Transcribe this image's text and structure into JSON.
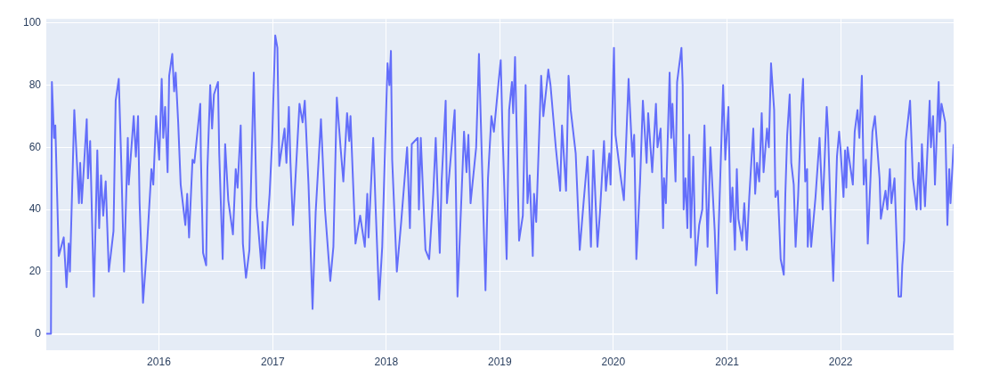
{
  "chart_data": {
    "type": "line",
    "xlim": [
      "2015-01-04",
      "2022-12-30"
    ],
    "ylim": [
      -5.3,
      101.3
    ],
    "xticks": [
      "2016",
      "2017",
      "2018",
      "2019",
      "2020",
      "2021",
      "2022"
    ],
    "yticks": [
      0,
      20,
      40,
      60,
      80,
      100
    ],
    "grid": true,
    "x": [
      "2015-01-04",
      "2015-01-19",
      "2015-01-22",
      "2015-01-29",
      "2015-02-02",
      "2015-02-13",
      "2015-03-01",
      "2015-03-10",
      "2015-03-17",
      "2015-03-21",
      "2015-04-04",
      "2015-04-19",
      "2015-04-23",
      "2015-04-28",
      "2015-05-14",
      "2015-05-18",
      "2015-05-25",
      "2015-06-06",
      "2015-06-17",
      "2015-06-23",
      "2015-06-29",
      "2015-07-06",
      "2015-07-14",
      "2015-07-24",
      "2015-08-08",
      "2015-08-15",
      "2015-08-25",
      "2015-09-02",
      "2015-09-11",
      "2015-09-23",
      "2015-09-26",
      "2015-10-12",
      "2015-10-19",
      "2015-10-26",
      "2015-10-31",
      "2015-11-11",
      "2015-11-23",
      "2015-12-08",
      "2015-12-14",
      "2015-12-23",
      "2016-01-02",
      "2016-01-10",
      "2016-01-15",
      "2016-01-21",
      "2016-01-29",
      "2016-02-03",
      "2016-02-13",
      "2016-02-19",
      "2016-02-24",
      "2016-03-03",
      "2016-03-11",
      "2016-03-26",
      "2016-04-01",
      "2016-04-07",
      "2016-04-18",
      "2016-04-24",
      "2016-05-13",
      "2016-05-15",
      "2016-05-22",
      "2016-06-01",
      "2016-06-05",
      "2016-06-14",
      "2016-06-20",
      "2016-06-26",
      "2016-07-09",
      "2016-07-13",
      "2016-07-24",
      "2016-08-01",
      "2016-08-11",
      "2016-08-26",
      "2016-09-04",
      "2016-09-10",
      "2016-09-20",
      "2016-09-27",
      "2016-10-07",
      "2016-10-18",
      "2016-11-01",
      "2016-11-10",
      "2016-11-26",
      "2016-11-29",
      "2016-12-05",
      "2016-12-22",
      "2016-12-30",
      "2017-01-09",
      "2017-01-16",
      "2017-01-22",
      "2017-02-08",
      "2017-02-14",
      "2017-02-22",
      "2017-02-27",
      "2017-03-07",
      "2017-03-28",
      "2017-04-07",
      "2017-04-14",
      "2017-04-26",
      "2017-05-09",
      "2017-05-19",
      "2017-06-05",
      "2017-06-18",
      "2017-07-05",
      "2017-07-15",
      "2017-07-26",
      "2017-08-07",
      "2017-08-16",
      "2017-08-28",
      "2017-09-04",
      "2017-09-08",
      "2017-09-24",
      "2017-10-09",
      "2017-10-24",
      "2017-11-01",
      "2017-11-05",
      "2017-11-20",
      "2017-11-28",
      "2017-12-09",
      "2017-12-19",
      "2018-01-05",
      "2018-01-11",
      "2018-01-16",
      "2018-01-20",
      "2018-02-04",
      "2018-02-18",
      "2018-03-09",
      "2018-03-18",
      "2018-03-24",
      "2018-04-12",
      "2018-04-16",
      "2018-04-22",
      "2018-05-07",
      "2018-05-19",
      "2018-06-01",
      "2018-06-09",
      "2018-06-22",
      "2018-06-28",
      "2018-07-11",
      "2018-07-15",
      "2018-08-09",
      "2018-08-18",
      "2018-09-08",
      "2018-09-16",
      "2018-09-22",
      "2018-09-29",
      "2018-10-17",
      "2018-10-26",
      "2018-11-05",
      "2018-11-16",
      "2018-11-24",
      "2018-12-05",
      "2018-12-13",
      "2018-12-30",
      "2019-01-04",
      "2019-01-10",
      "2019-01-23",
      "2019-01-31",
      "2019-02-09",
      "2019-02-13",
      "2019-02-19",
      "2019-03-04",
      "2019-03-16",
      "2019-03-25",
      "2019-03-31",
      "2019-04-07",
      "2019-04-17",
      "2019-04-21",
      "2019-04-28",
      "2019-05-14",
      "2019-05-21",
      "2019-06-06",
      "2019-06-13",
      "2019-06-30",
      "2019-07-14",
      "2019-07-20",
      "2019-08-02",
      "2019-08-10",
      "2019-08-17",
      "2019-09-02",
      "2019-09-15",
      "2019-09-28",
      "2019-10-10",
      "2019-10-21",
      "2019-10-29",
      "2019-11-11",
      "2019-11-19",
      "2019-12-02",
      "2019-12-08",
      "2019-12-19",
      "2019-12-23",
      "2020-01-03",
      "2020-01-08",
      "2020-01-24",
      "2020-02-04",
      "2020-02-19",
      "2020-03-02",
      "2020-03-08",
      "2020-03-15",
      "2020-03-27",
      "2020-04-05",
      "2020-04-17",
      "2020-04-22",
      "2020-05-05",
      "2020-05-17",
      "2020-05-22",
      "2020-06-01",
      "2020-06-09",
      "2020-06-12",
      "2020-06-18",
      "2020-06-30",
      "2020-07-05",
      "2020-07-09",
      "2020-07-19",
      "2020-07-24",
      "2020-08-07",
      "2020-08-11",
      "2020-08-14",
      "2020-08-20",
      "2020-08-26",
      "2020-09-01",
      "2020-09-06",
      "2020-09-14",
      "2020-09-22",
      "2020-10-03",
      "2020-10-13",
      "2020-10-20",
      "2020-10-30",
      "2020-11-08",
      "2020-11-22",
      "2020-11-29",
      "2020-12-05",
      "2020-12-19",
      "2020-12-26",
      "2021-01-05",
      "2021-01-12",
      "2021-01-18",
      "2021-01-26",
      "2021-02-01",
      "2021-02-06",
      "2021-02-18",
      "2021-02-25",
      "2021-03-05",
      "2021-03-13",
      "2021-03-26",
      "2021-04-01",
      "2021-04-07",
      "2021-04-14",
      "2021-04-22",
      "2021-04-28",
      "2021-05-09",
      "2021-05-15",
      "2021-05-22",
      "2021-06-01",
      "2021-06-05",
      "2021-06-13",
      "2021-06-22",
      "2021-07-02",
      "2021-07-07",
      "2021-07-13",
      "2021-07-21",
      "2021-07-26",
      "2021-08-03",
      "2021-08-09",
      "2021-08-17",
      "2021-08-28",
      "2021-09-02",
      "2021-09-09",
      "2021-09-15",
      "2021-09-17",
      "2021-09-23",
      "2021-09-28",
      "2021-10-12",
      "2021-10-25",
      "2021-11-04",
      "2021-11-17",
      "2021-11-21",
      "2021-11-30",
      "2021-12-08",
      "2021-12-20",
      "2021-12-27",
      "2021-12-31",
      "2022-01-10",
      "2022-01-15",
      "2022-01-19",
      "2022-01-23",
      "2022-02-09",
      "2022-02-15",
      "2022-02-24",
      "2022-03-02",
      "2022-03-10",
      "2022-03-16",
      "2022-03-23",
      "2022-03-29",
      "2022-04-13",
      "2022-04-21",
      "2022-05-06",
      "2022-05-10",
      "2022-05-25",
      "2022-05-31",
      "2022-06-08",
      "2022-06-13",
      "2022-06-23",
      "2022-07-06",
      "2022-07-14",
      "2022-07-18",
      "2022-07-24",
      "2022-07-29",
      "2022-08-12",
      "2022-08-21",
      "2022-09-02",
      "2022-09-09",
      "2022-09-15",
      "2022-09-19",
      "2022-09-29",
      "2022-10-14",
      "2022-10-18",
      "2022-10-25",
      "2022-10-31",
      "2022-11-12",
      "2022-11-15",
      "2022-11-21",
      "2022-12-03",
      "2022-12-10",
      "2022-12-16",
      "2022-12-20",
      "2022-12-30"
    ],
    "series": [
      {
        "color": "#636efa",
        "values": [
          0,
          0,
          81,
          63,
          67,
          25,
          31,
          15,
          29,
          20,
          72,
          42,
          55,
          42,
          69,
          50,
          62,
          12,
          59,
          34,
          51,
          38,
          49,
          20,
          33,
          75,
          82,
          55,
          20,
          63,
          48,
          70,
          57,
          70,
          42,
          10,
          27,
          53,
          48,
          70,
          56,
          82,
          63,
          73,
          52,
          83,
          90,
          78,
          84,
          68,
          48,
          35,
          45,
          31,
          56,
          55,
          74,
          57,
          26,
          22,
          53,
          80,
          66,
          77,
          81,
          58,
          24,
          61,
          43,
          32,
          53,
          47,
          67,
          29,
          18,
          27,
          84,
          41,
          21,
          36,
          21,
          45,
          62,
          96,
          92,
          54,
          66,
          55,
          73,
          55,
          35,
          74,
          68,
          75,
          48,
          8,
          39,
          69,
          40,
          17,
          28,
          76,
          60,
          49,
          71,
          62,
          70,
          29,
          38,
          28,
          45,
          31,
          63,
          40,
          11,
          28,
          87,
          80,
          91,
          56,
          20,
          36,
          60,
          34,
          61,
          63,
          40,
          63,
          27,
          24,
          45,
          63,
          26,
          49,
          75,
          42,
          72,
          12,
          65,
          52,
          64,
          42,
          60,
          90,
          54,
          14,
          50,
          70,
          65,
          83,
          88,
          64,
          24,
          72,
          81,
          71,
          89,
          30,
          38,
          80,
          42,
          51,
          25,
          45,
          36,
          83,
          70,
          85,
          80,
          60,
          46,
          67,
          46,
          83,
          72,
          58,
          27,
          43,
          57,
          28,
          59,
          28,
          39,
          62,
          46,
          58,
          48,
          92,
          64,
          51,
          43,
          82,
          57,
          64,
          24,
          49,
          75,
          55,
          71,
          52,
          74,
          60,
          66,
          34,
          50,
          42,
          84,
          63,
          74,
          49,
          81,
          92,
          80,
          40,
          50,
          34,
          64,
          31,
          57,
          22,
          35,
          40,
          67,
          28,
          60,
          33,
          13,
          35,
          80,
          56,
          73,
          36,
          47,
          27,
          53,
          37,
          30,
          42,
          27,
          44,
          66,
          45,
          55,
          49,
          71,
          52,
          66,
          60,
          87,
          72,
          44,
          46,
          24,
          19,
          45,
          64,
          77,
          55,
          48,
          28,
          44,
          74,
          82,
          49,
          53,
          28,
          40,
          28,
          44,
          63,
          40,
          73,
          66,
          37,
          17,
          57,
          65,
          60,
          44,
          59,
          47,
          60,
          48,
          65,
          72,
          63,
          83,
          48,
          56,
          29,
          65,
          70,
          50,
          37,
          46,
          40,
          53,
          42,
          50,
          12,
          12,
          22,
          30,
          62,
          75,
          50,
          40,
          55,
          40,
          61,
          41,
          75,
          60,
          70,
          48,
          81,
          65,
          74,
          68,
          35,
          53,
          42,
          61
        ]
      }
    ]
  }
}
